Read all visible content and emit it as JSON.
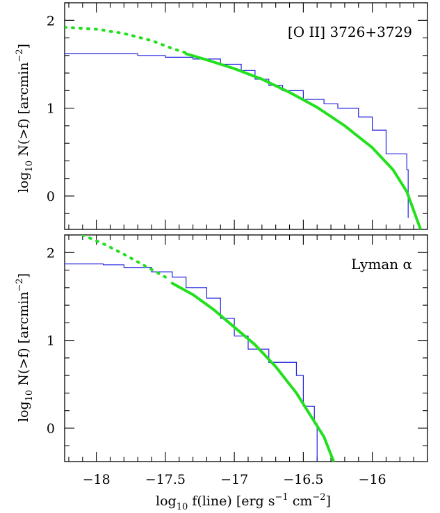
{
  "figure": {
    "xlabel_main": "log",
    "xlabel_sub": "10",
    "xlabel_rest": " f(line) [erg s",
    "xlabel_exp1": "−1",
    "xlabel_mid": " cm",
    "xlabel_exp2": "−2",
    "xlabel_end": "]",
    "ylabel_main": "log",
    "ylabel_sub": "10",
    "ylabel_rest": " N(>f) [arcmin",
    "ylabel_exp": "−2",
    "ylabel_end": "]"
  },
  "colors": {
    "observed": "#2020e0",
    "model": "#22e01e",
    "frame": "#000000"
  },
  "chart_data": [
    {
      "type": "line",
      "label": "[O II] 3726+3729",
      "xlim": [
        -18.23,
        -15.6
      ],
      "ylim": [
        -0.38,
        2.2
      ],
      "x_ticks": [
        -18,
        -17.5,
        -17,
        -16.5,
        -16
      ],
      "x_tick_labels": [
        "−18",
        "−17.5",
        "−17",
        "−16.5",
        "−16"
      ],
      "y_ticks": [
        0,
        1,
        2
      ],
      "y_tick_labels": [
        "0",
        "1",
        "2"
      ],
      "series": [
        {
          "style": "step",
          "points": [
            [
              -18.23,
              1.62
            ],
            [
              -17.9,
              1.62
            ],
            [
              -17.7,
              1.6
            ],
            [
              -17.5,
              1.58
            ],
            [
              -17.3,
              1.56
            ],
            [
              -17.1,
              1.5
            ],
            [
              -16.95,
              1.43
            ],
            [
              -16.85,
              1.33
            ],
            [
              -16.75,
              1.26
            ],
            [
              -16.65,
              1.2
            ],
            [
              -16.5,
              1.1
            ],
            [
              -16.35,
              1.05
            ],
            [
              -16.25,
              1.0
            ],
            [
              -16.1,
              0.9
            ],
            [
              -16.0,
              0.75
            ],
            [
              -15.9,
              0.48
            ],
            [
              -15.75,
              0.3
            ],
            [
              -15.74,
              -0.25
            ]
          ]
        },
        {
          "style": "model-dotted",
          "points": [
            [
              -18.23,
              1.92
            ],
            [
              -18.0,
              1.9
            ],
            [
              -17.8,
              1.85
            ],
            [
              -17.6,
              1.77
            ],
            [
              -17.45,
              1.68
            ],
            [
              -17.35,
              1.63
            ]
          ]
        },
        {
          "style": "model-solid",
          "points": [
            [
              -17.35,
              1.62
            ],
            [
              -17.2,
              1.55
            ],
            [
              -17.0,
              1.45
            ],
            [
              -16.8,
              1.33
            ],
            [
              -16.6,
              1.18
            ],
            [
              -16.4,
              1.01
            ],
            [
              -16.2,
              0.8
            ],
            [
              -16.0,
              0.55
            ],
            [
              -15.85,
              0.3
            ],
            [
              -15.75,
              0.05
            ],
            [
              -15.65,
              -0.38
            ]
          ]
        }
      ]
    },
    {
      "type": "line",
      "label": "Lyman α",
      "xlim": [
        -18.23,
        -15.6
      ],
      "ylim": [
        -0.38,
        2.2
      ],
      "x_ticks": [
        -18,
        -17.5,
        -17,
        -16.5,
        -16
      ],
      "x_tick_labels": [
        "−18",
        "−17.5",
        "−17",
        "−16.5",
        "−16"
      ],
      "y_ticks": [
        0,
        1,
        2
      ],
      "y_tick_labels": [
        "0",
        "1",
        "2"
      ],
      "series": [
        {
          "style": "step",
          "points": [
            [
              -18.23,
              1.87
            ],
            [
              -17.95,
              1.86
            ],
            [
              -17.8,
              1.83
            ],
            [
              -17.6,
              1.78
            ],
            [
              -17.45,
              1.72
            ],
            [
              -17.35,
              1.6
            ],
            [
              -17.2,
              1.48
            ],
            [
              -17.1,
              1.25
            ],
            [
              -17.0,
              1.05
            ],
            [
              -16.9,
              0.9
            ],
            [
              -16.75,
              0.75
            ],
            [
              -16.55,
              0.6
            ],
            [
              -16.5,
              0.25
            ],
            [
              -16.42,
              0.05
            ],
            [
              -16.4,
              -0.38
            ]
          ]
        },
        {
          "style": "model-dotted",
          "points": [
            [
              -18.1,
              2.2
            ],
            [
              -17.95,
              2.1
            ],
            [
              -17.8,
              1.98
            ],
            [
              -17.65,
              1.85
            ],
            [
              -17.5,
              1.72
            ]
          ]
        },
        {
          "style": "model-solid",
          "points": [
            [
              -17.45,
              1.65
            ],
            [
              -17.3,
              1.52
            ],
            [
              -17.15,
              1.35
            ],
            [
              -17.0,
              1.15
            ],
            [
              -16.85,
              0.95
            ],
            [
              -16.7,
              0.7
            ],
            [
              -16.55,
              0.4
            ],
            [
              -16.45,
              0.15
            ],
            [
              -16.35,
              -0.1
            ],
            [
              -16.28,
              -0.38
            ]
          ]
        }
      ]
    }
  ]
}
